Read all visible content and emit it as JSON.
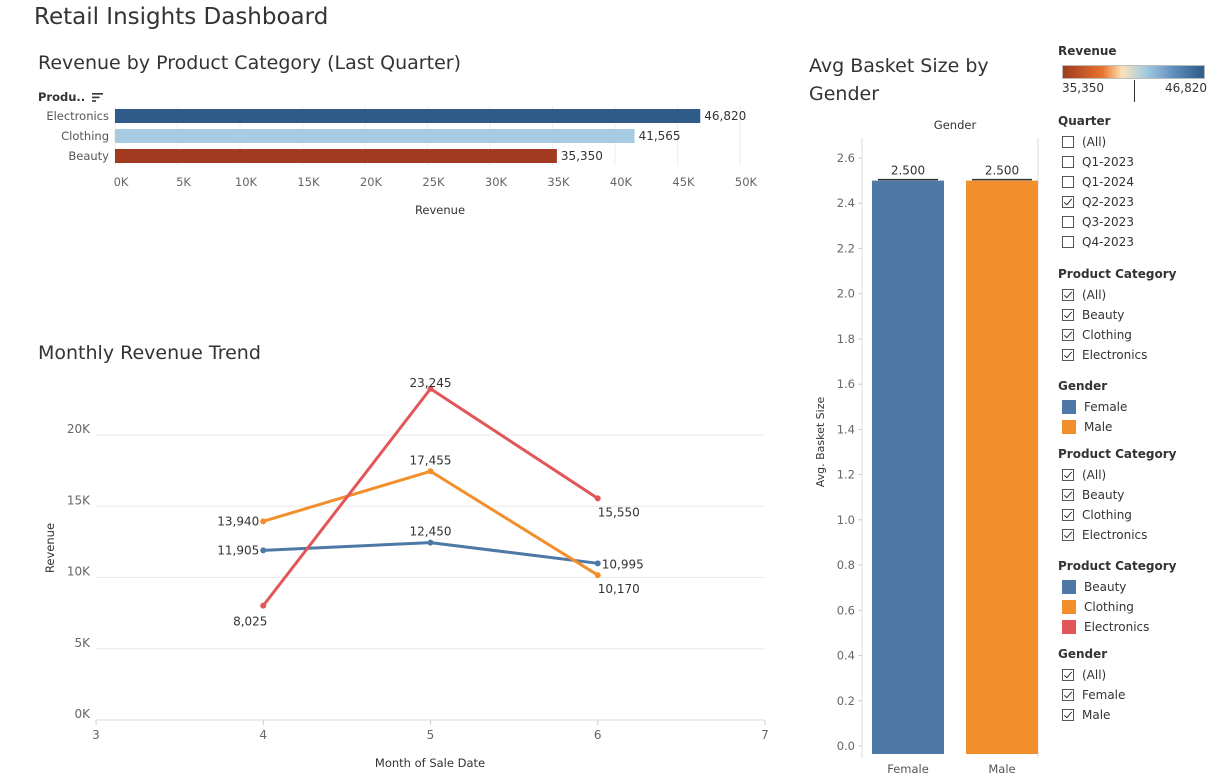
{
  "dashboard_title": "Retail Insights Dashboard",
  "bar_sheet": {
    "title": "Revenue by Product Category (Last Quarter)",
    "row_header": "Produ..",
    "xlabel": "Revenue"
  },
  "line_sheet": {
    "title": "Monthly Revenue Trend",
    "xlabel": "Month of Sale Date",
    "ylabel": "Revenue"
  },
  "basket_sheet": {
    "title_line1": "Avg Basket Size by",
    "title_line2": "Gender",
    "column_header": "Gender",
    "ylabel": "Avg. Basket Size"
  },
  "colors": {
    "blue": "#4e79a7",
    "orange": "#f28e2b",
    "red": "#e15759",
    "bar_high": "#2e5b88",
    "bar_mid": "#a6cbe3",
    "bar_low": "#a13a21"
  },
  "chart_data": [
    {
      "type": "bar",
      "orientation": "horizontal",
      "title": "Revenue by Product Category (Last Quarter)",
      "categories": [
        "Electronics",
        "Clothing",
        "Beauty"
      ],
      "values": [
        46820,
        41565,
        35350
      ],
      "value_labels": [
        "46,820",
        "41,565",
        "35,350"
      ],
      "xlabel": "Revenue",
      "xlim": [
        0,
        50000
      ],
      "ticks": [
        "0K",
        "5K",
        "10K",
        "15K",
        "20K",
        "25K",
        "30K",
        "35K",
        "40K",
        "45K",
        "50K"
      ]
    },
    {
      "type": "line",
      "title": "Monthly Revenue Trend",
      "xlabel": "Month of Sale Date",
      "ylabel": "Revenue",
      "xlim": [
        3,
        7
      ],
      "ylim": [
        0,
        24000
      ],
      "x_ticks": [
        "3",
        "4",
        "5",
        "6",
        "7"
      ],
      "y_ticks": [
        "0K",
        "5K",
        "10K",
        "15K",
        "20K"
      ],
      "x": [
        4,
        5,
        6
      ],
      "series": [
        {
          "name": "Beauty",
          "color": "#4e79a7",
          "values": [
            11905,
            12450,
            10995
          ],
          "labels": [
            "11,905",
            "12,450",
            "10,995"
          ]
        },
        {
          "name": "Clothing",
          "color": "#f28e2b",
          "values": [
            13940,
            17455,
            10170
          ],
          "labels": [
            "13,940",
            "17,455",
            "10,170"
          ]
        },
        {
          "name": "Electronics",
          "color": "#e15759",
          "values": [
            8025,
            23245,
            15550
          ],
          "labels": [
            "8,025",
            "23,245",
            "15,550"
          ]
        }
      ]
    },
    {
      "type": "bar",
      "title": "Avg Basket Size by Gender",
      "categories": [
        "Female",
        "Male"
      ],
      "values": [
        2.5,
        2.5
      ],
      "value_labels": [
        "2.500",
        "2.500"
      ],
      "colors": [
        "#4e79a7",
        "#f28e2b"
      ],
      "ylabel": "Avg. Basket Size",
      "ylim": [
        0,
        2.6
      ],
      "y_ticks": [
        "0.0",
        "0.2",
        "0.4",
        "0.6",
        "0.8",
        "1.0",
        "1.2",
        "1.4",
        "1.6",
        "1.8",
        "2.0",
        "2.2",
        "2.4",
        "2.6"
      ]
    }
  ],
  "legend_revenue": {
    "title": "Revenue",
    "min_label": "35,350",
    "max_label": "46,820"
  },
  "filter_quarter": {
    "title": "Quarter",
    "items": [
      {
        "label": "(All)",
        "checked": false
      },
      {
        "label": "Q1-2023",
        "checked": false
      },
      {
        "label": "Q1-2024",
        "checked": false
      },
      {
        "label": "Q2-2023",
        "checked": true
      },
      {
        "label": "Q3-2023",
        "checked": false
      },
      {
        "label": "Q4-2023",
        "checked": false
      }
    ]
  },
  "filter_category_1": {
    "title": "Product Category",
    "items": [
      {
        "label": "(All)",
        "checked": true
      },
      {
        "label": "Beauty",
        "checked": true
      },
      {
        "label": "Clothing",
        "checked": true
      },
      {
        "label": "Electronics",
        "checked": true
      }
    ]
  },
  "legend_gender": {
    "title": "Gender",
    "items": [
      {
        "label": "Female",
        "color": "#4e79a7"
      },
      {
        "label": "Male",
        "color": "#f28e2b"
      }
    ]
  },
  "filter_category_2": {
    "title": "Product Category",
    "items": [
      {
        "label": "(All)",
        "checked": true
      },
      {
        "label": "Beauty",
        "checked": true
      },
      {
        "label": "Clothing",
        "checked": true
      },
      {
        "label": "Electronics",
        "checked": true
      }
    ]
  },
  "legend_category": {
    "title": "Product Category",
    "items": [
      {
        "label": "Beauty",
        "color": "#4e79a7"
      },
      {
        "label": "Clothing",
        "color": "#f28e2b"
      },
      {
        "label": "Electronics",
        "color": "#e15759"
      }
    ]
  },
  "filter_gender": {
    "title": "Gender",
    "items": [
      {
        "label": "(All)",
        "checked": true
      },
      {
        "label": "Female",
        "checked": true
      },
      {
        "label": "Male",
        "checked": true
      }
    ]
  }
}
